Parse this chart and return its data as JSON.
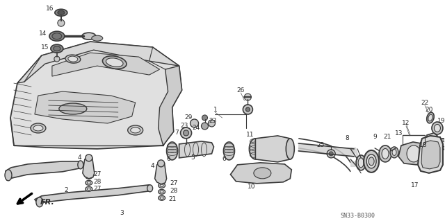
{
  "background_color": "#ffffff",
  "line_color": "#3a3a3a",
  "text_color": "#2a2a2a",
  "diagram_code": "SN33-B0300",
  "figsize": [
    6.4,
    3.19
  ],
  "dpi": 100
}
